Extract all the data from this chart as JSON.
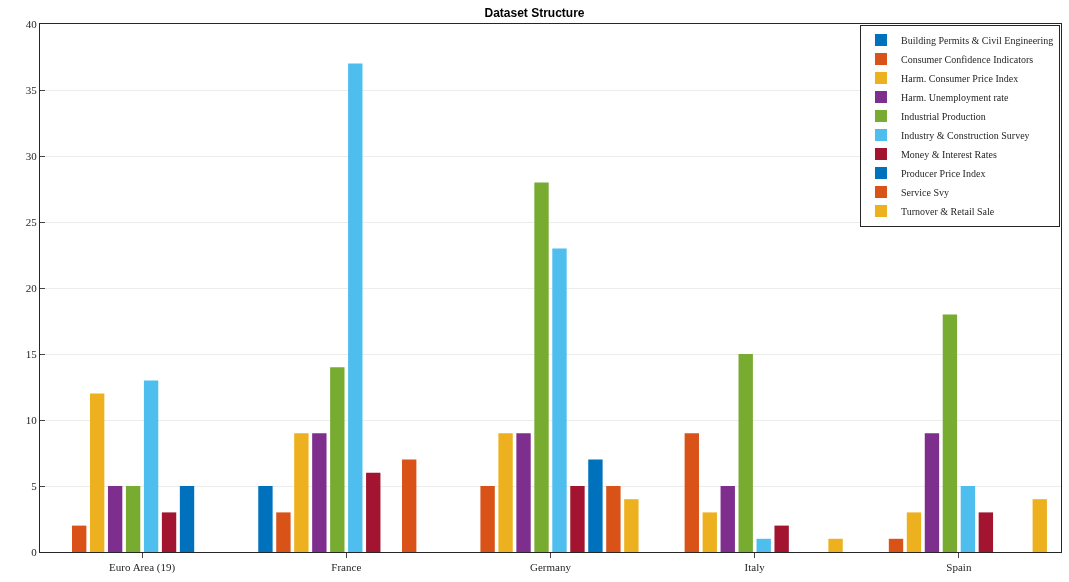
{
  "chart_data": {
    "type": "bar",
    "title": "Dataset Structure",
    "categories": [
      "Euro Area (19)",
      "France",
      "Germany",
      "Italy",
      "Spain"
    ],
    "series": [
      {
        "name": "Building Permits & Civil Engineering",
        "color": "#0072bd",
        "values": [
          0,
          5,
          0,
          0,
          0
        ]
      },
      {
        "name": "Consumer Confidence Indicators",
        "color": "#d95319",
        "values": [
          2,
          3,
          5,
          9,
          1
        ]
      },
      {
        "name": "Harm. Consumer Price Index",
        "color": "#edb120",
        "values": [
          12,
          9,
          9,
          3,
          3
        ]
      },
      {
        "name": "Harm. Unemployment rate",
        "color": "#7e2f8e",
        "values": [
          5,
          9,
          9,
          5,
          9
        ]
      },
      {
        "name": "Industrial Production",
        "color": "#77ac30",
        "values": [
          5,
          14,
          28,
          15,
          18
        ]
      },
      {
        "name": "Industry & Construction Survey",
        "color": "#4dbeee",
        "values": [
          13,
          37,
          23,
          1,
          5
        ]
      },
      {
        "name": "Money & Interest Rates",
        "color": "#a2142f",
        "values": [
          3,
          6,
          5,
          2,
          3
        ]
      },
      {
        "name": "Producer Price Index",
        "color": "#0072bd",
        "values": [
          5,
          0,
          7,
          0,
          0
        ]
      },
      {
        "name": "Service Svy",
        "color": "#d95319",
        "values": [
          0,
          7,
          5,
          0,
          0
        ]
      },
      {
        "name": "Turnover & Retail Sale",
        "color": "#edb120",
        "values": [
          0,
          0,
          4,
          1,
          4
        ]
      }
    ],
    "ylim": [
      0,
      40
    ],
    "yticks": [
      0,
      5,
      10,
      15,
      20,
      25,
      30,
      35,
      40
    ],
    "grid": "y",
    "legend": "top right"
  }
}
